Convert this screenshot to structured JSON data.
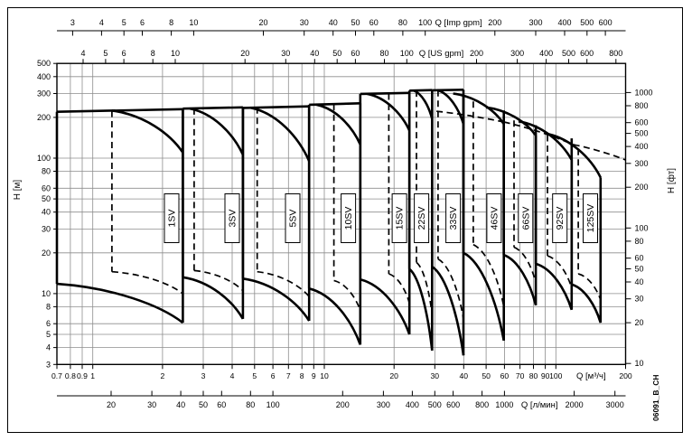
{
  "figure": {
    "background": "#ffffff",
    "border_color": "#000000",
    "curve_color": "#000000",
    "grid_color": "#8d8d8d",
    "watermark": "06091_B_CH"
  },
  "chart_data": {
    "type": "line",
    "title": "",
    "log_log": true,
    "x_axis_m3h": {
      "label": "Q [м³/ч]",
      "range": [
        0.7,
        200
      ],
      "ticks": [
        0.7,
        0.8,
        0.9,
        1,
        2,
        3,
        4,
        5,
        6,
        7,
        8,
        9,
        10,
        20,
        30,
        40,
        50,
        60,
        70,
        80,
        90,
        100,
        200
      ],
      "unit_label_q": 142
    },
    "x_axis_lmin": {
      "label": "Q [л/мин]",
      "per_m3h": 16.667,
      "ticks": [
        20,
        30,
        40,
        50,
        60,
        80,
        100,
        200,
        300,
        400,
        500,
        600,
        800,
        1000,
        2000,
        3000
      ],
      "unit_label_q": 85
    },
    "x_axis_imp": {
      "label": "Q [Imp gpm]",
      "per_m3h": 3.6662,
      "ticks": [
        3,
        4,
        5,
        6,
        8,
        10,
        20,
        30,
        40,
        50,
        60,
        80,
        100,
        200,
        300,
        400,
        500,
        600
      ],
      "unit_label_q": 38
    },
    "x_axis_us": {
      "label": "Q [US gpm]",
      "per_m3h": 4.4029,
      "ticks": [
        4,
        5,
        6,
        8,
        10,
        20,
        30,
        40,
        50,
        60,
        80,
        100,
        200,
        300,
        400,
        500,
        600,
        800
      ],
      "unit_label_q": 32
    },
    "y_axis_m": {
      "label": "H [м]",
      "range": [
        3,
        500
      ],
      "ticks": [
        3,
        4,
        5,
        6,
        8,
        10,
        20,
        30,
        40,
        50,
        60,
        80,
        100,
        200,
        300,
        400,
        500
      ]
    },
    "y_axis_ft": {
      "label": "H [фт]",
      "m_per_ft": 0.3048,
      "ticks": [
        10,
        20,
        30,
        40,
        50,
        60,
        80,
        100,
        200,
        300,
        400,
        500,
        600,
        800,
        1000
      ]
    },
    "grid": {
      "v_lines_m3h": [
        0.8,
        0.9,
        1,
        2,
        3,
        4,
        5,
        6,
        7,
        8,
        9,
        10,
        20,
        30,
        40,
        50,
        60,
        70,
        80,
        90,
        100
      ],
      "h_lines_m": [
        4,
        5,
        6,
        8,
        10,
        20,
        30,
        40,
        50,
        60,
        80,
        100,
        200,
        300,
        400
      ]
    },
    "label_row_h_m": 36,
    "pumps": [
      {
        "name": "1SV",
        "ql": 0.7,
        "qr": 2.45,
        "htl": 220,
        "htr": 230,
        "qd": 1.21,
        "hmr": 110,
        "hbl": 11.8,
        "hbr": 6.1,
        "dash": {
          "q": 1.21,
          "h1": 224,
          "h2": 14.5,
          "curve": [
            [
              1.21,
              14.5
            ],
            [
              2.45,
              10.0
            ]
          ]
        },
        "label_q": 2.19
      },
      {
        "name": "3SV",
        "ql": 2.45,
        "qr": 4.45,
        "htl": 232,
        "htr": 237,
        "qd": 2.62,
        "hmr": 106,
        "hbl": 13.2,
        "hbr": 6.5,
        "dash": {
          "q": 2.74,
          "h1": 233,
          "h2": 14.8,
          "curve": [
            [
              2.74,
              14.8
            ],
            [
              4.45,
              10.5
            ]
          ]
        },
        "label_q": 4.0
      },
      {
        "name": "5SV",
        "ql": 4.45,
        "qr": 8.6,
        "htl": 235,
        "htr": 241,
        "qd": 4.8,
        "hmr": 95,
        "hbl": 12.9,
        "hbr": 6.3,
        "dash": {
          "q": 5.13,
          "h1": 237,
          "h2": 14.5,
          "curve": [
            [
              5.13,
              14.5
            ],
            [
              8.6,
              9.5
            ]
          ]
        },
        "label_q": 7.3
      },
      {
        "name": "10SV",
        "ql": 8.6,
        "qr": 14.3,
        "htl": 248,
        "htr": 254,
        "qd": 9.2,
        "hmr": 126,
        "hbl": 10.9,
        "hbr": 4.2,
        "dash": {
          "q": 11.0,
          "h1": 250,
          "h2": 12.5,
          "curve": [
            [
              11.0,
              12.5
            ],
            [
              14.3,
              7.5
            ]
          ]
        },
        "label_q": 12.7
      },
      {
        "name": "15SV",
        "ql": 14.3,
        "qr": 23.3,
        "htl": 298,
        "htr": 303,
        "qd": 15.3,
        "hmr": 160,
        "hbl": 12.7,
        "hbr": 5.0,
        "dash": {
          "q": 19.0,
          "h1": 300,
          "h2": 14.0,
          "curve": [
            [
              19.0,
              14.0
            ],
            [
              23.3,
              8.5
            ]
          ]
        },
        "label_q": 21.1
      },
      {
        "name": "22SV",
        "ql": 23.3,
        "qr": 29.2,
        "htl": 315,
        "htr": 318,
        "qd": 24.3,
        "hmr": 195,
        "hbl": 15.2,
        "hbr": 3.8,
        "dash": {
          "q": 25.0,
          "h1": 316,
          "h2": 17.0,
          "curve": [
            [
              25.0,
              17.0
            ],
            [
              29.2,
              7.0
            ]
          ]
        },
        "label_q": 26.3
      },
      {
        "name": "33SV",
        "ql": 29.2,
        "qr": 39.9,
        "htl": 317,
        "htr": 320,
        "qd": 30.8,
        "hmr": 179,
        "hbl": 15.8,
        "hbr": 3.5,
        "dash": {
          "q": 31.0,
          "h1": 318,
          "h2": 18.0,
          "curve": [
            [
              31.0,
              18.0
            ],
            [
              39.9,
              6.5
            ]
          ]
        },
        "label_q": 36.0
      },
      {
        "name": "46SV",
        "ql": 39.9,
        "qr": 59.6,
        "htl": 295,
        "htr": 179,
        "top_start": [
          36,
          300
        ],
        "hbl": 20.0,
        "hbr": 4.5,
        "dash": {
          "q": 44.0,
          "h1": 262,
          "h2": 23.0,
          "curve": [
            [
              44.0,
              23.0
            ],
            [
              59.6,
              8.0
            ]
          ]
        },
        "label_q": 54.1
      },
      {
        "name": "66SV",
        "ql": 59.6,
        "qr": 81.9,
        "htl": 225,
        "htr": 147,
        "top_start": [
          50,
          237
        ],
        "hbl": 19.3,
        "hbr": 8.2,
        "dash": {
          "q": 66.0,
          "h1": 190,
          "h2": 22.0,
          "curve": [
            [
              66.0,
              22.0
            ],
            [
              81.9,
              12.0
            ]
          ]
        },
        "label_q": 74.0
      },
      {
        "name": "92SV",
        "ql": 81.9,
        "qr": 117,
        "htl": 175,
        "htr": 97,
        "top_start": [
          69,
          187
        ],
        "hbl": 16.6,
        "hbr": 7.6,
        "dash": {
          "q": 92.0,
          "h1": 148,
          "h2": 19.0,
          "curve": [
            [
              92.0,
              19.0
            ],
            [
              117,
              11.0
            ]
          ]
        },
        "label_q": 104
      },
      {
        "name": "125SV",
        "ql": 117,
        "qr": 156,
        "htl": 140,
        "htr": 72,
        "top_start": [
          90,
          152
        ],
        "hbl": 11.7,
        "hbr": 6.1,
        "dash": {
          "q": 125,
          "h1": 117,
          "h2": 14.0,
          "curve": [
            [
              125,
              14.0
            ],
            [
              156,
              9.0
            ]
          ]
        },
        "label_q": 141
      }
    ],
    "long_dashed_curve": [
      [
        30.5,
        222
      ],
      [
        59.6,
        185
      ],
      [
        119,
        126
      ],
      [
        200,
        97
      ]
    ]
  }
}
